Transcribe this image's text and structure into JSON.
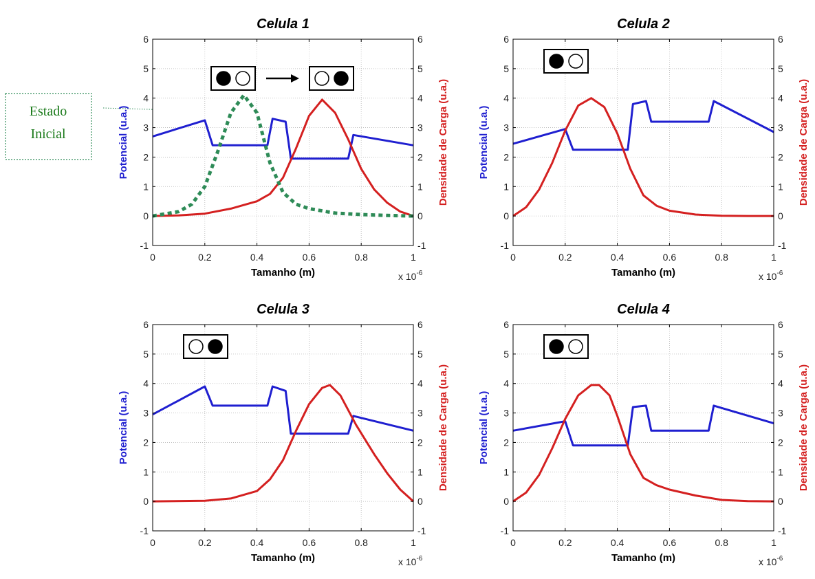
{
  "annotation": {
    "line1": "Estado",
    "line2": "Inicial",
    "color": "#1a7a1a"
  },
  "colors": {
    "potential": "#1f1fd0",
    "density": "#d42020",
    "initial": "#2e8b57"
  },
  "state_icons": {
    "cell1_from": [
      "filled",
      "empty"
    ],
    "cell1_to": [
      "empty",
      "filled"
    ],
    "cell2": [
      "filled",
      "empty"
    ],
    "cell3": [
      "empty",
      "filled"
    ],
    "cell4": [
      "filled",
      "empty"
    ]
  },
  "chart_data": [
    {
      "type": "line",
      "title": "Celula 1",
      "xlabel": "Tamanho (m)",
      "ylabel_left": "Potencial (u.a.)",
      "ylabel_right": "Densidade de Carga (u.a.)",
      "x_multiplier": "x 10-6",
      "xlim": [
        0,
        1
      ],
      "ylim": [
        -1,
        6
      ],
      "xticks": [
        "0",
        "0.2",
        "0.4",
        "0.6",
        "0.8",
        "1"
      ],
      "yticks": [
        "-1",
        "0",
        "1",
        "2",
        "3",
        "4",
        "5",
        "6"
      ],
      "grid": true,
      "series": [
        {
          "role": "potential",
          "axis": "left",
          "x": [
            0,
            0.2,
            0.23,
            0.44,
            0.46,
            0.51,
            0.53,
            0.75,
            0.77,
            1.0
          ],
          "y": [
            2.7,
            3.25,
            2.4,
            2.4,
            3.3,
            3.2,
            1.95,
            1.95,
            2.75,
            2.4
          ]
        },
        {
          "role": "density",
          "axis": "right",
          "x": [
            0,
            0.1,
            0.2,
            0.3,
            0.4,
            0.45,
            0.5,
            0.55,
            0.6,
            0.65,
            0.7,
            0.75,
            0.8,
            0.85,
            0.9,
            0.95,
            1.0
          ],
          "y": [
            0,
            0.02,
            0.08,
            0.25,
            0.5,
            0.75,
            1.3,
            2.3,
            3.4,
            3.95,
            3.5,
            2.6,
            1.6,
            0.9,
            0.45,
            0.15,
            0
          ]
        },
        {
          "role": "initial",
          "axis": "right",
          "dashed": true,
          "x": [
            0,
            0.1,
            0.15,
            0.2,
            0.25,
            0.3,
            0.35,
            0.4,
            0.45,
            0.5,
            0.55,
            0.6,
            0.7,
            0.8,
            0.9,
            1.0
          ],
          "y": [
            0,
            0.15,
            0.4,
            1.0,
            2.2,
            3.5,
            4.1,
            3.5,
            1.8,
            0.8,
            0.4,
            0.25,
            0.1,
            0.05,
            0.02,
            0
          ]
        }
      ]
    },
    {
      "type": "line",
      "title": "Celula 2",
      "xlabel": "Tamanho (m)",
      "ylabel_left": "Potencial (u.a.)",
      "ylabel_right": "Densidade de Carga (u.a.)",
      "x_multiplier": "x 10-6",
      "xlim": [
        0,
        1
      ],
      "ylim": [
        -1,
        6
      ],
      "xticks": [
        "0",
        "0.2",
        "0.4",
        "0.6",
        "0.8",
        "1"
      ],
      "yticks": [
        "-1",
        "0",
        "1",
        "2",
        "3",
        "4",
        "5",
        "6"
      ],
      "grid": true,
      "series": [
        {
          "role": "potential",
          "axis": "left",
          "x": [
            0,
            0.2,
            0.23,
            0.44,
            0.46,
            0.51,
            0.53,
            0.75,
            0.77,
            1.0
          ],
          "y": [
            2.45,
            2.95,
            2.25,
            2.25,
            3.8,
            3.9,
            3.2,
            3.2,
            3.9,
            2.85
          ]
        },
        {
          "role": "density",
          "axis": "right",
          "x": [
            0,
            0.05,
            0.1,
            0.15,
            0.2,
            0.25,
            0.3,
            0.35,
            0.4,
            0.45,
            0.5,
            0.55,
            0.6,
            0.7,
            0.8,
            0.9,
            1.0
          ],
          "y": [
            0,
            0.3,
            0.9,
            1.8,
            2.9,
            3.75,
            4.0,
            3.7,
            2.8,
            1.6,
            0.7,
            0.35,
            0.18,
            0.05,
            0.01,
            0,
            0
          ]
        }
      ]
    },
    {
      "type": "line",
      "title": "Celula 3",
      "xlabel": "Tamanho (m)",
      "ylabel_left": "Potencial (u.a.)",
      "ylabel_right": "Densidade de Carga (u.a.)",
      "x_multiplier": "x 10-6",
      "xlim": [
        0,
        1
      ],
      "ylim": [
        -1,
        6
      ],
      "xticks": [
        "0",
        "0.2",
        "0.4",
        "0.6",
        "0.8",
        "1"
      ],
      "yticks": [
        "-1",
        "0",
        "1",
        "2",
        "3",
        "4",
        "5",
        "6"
      ],
      "grid": true,
      "series": [
        {
          "role": "potential",
          "axis": "left",
          "x": [
            0,
            0.2,
            0.23,
            0.44,
            0.46,
            0.51,
            0.53,
            0.75,
            0.77,
            1.0
          ],
          "y": [
            2.95,
            3.9,
            3.25,
            3.25,
            3.9,
            3.75,
            2.3,
            2.3,
            2.9,
            2.4
          ]
        },
        {
          "role": "density",
          "axis": "right",
          "x": [
            0,
            0.2,
            0.3,
            0.4,
            0.45,
            0.5,
            0.55,
            0.6,
            0.65,
            0.68,
            0.72,
            0.78,
            0.85,
            0.9,
            0.95,
            1.0
          ],
          "y": [
            0,
            0.02,
            0.1,
            0.35,
            0.75,
            1.4,
            2.4,
            3.3,
            3.85,
            3.95,
            3.6,
            2.6,
            1.6,
            0.95,
            0.4,
            0
          ]
        }
      ]
    },
    {
      "type": "line",
      "title": "Celula 4",
      "xlabel": "Tamanho (m)",
      "ylabel_left": "Potencial (u.a.)",
      "ylabel_right": "Densidade de Carga (u.a.)",
      "x_multiplier": "x 10-6",
      "xlim": [
        0,
        1
      ],
      "ylim": [
        -1,
        6
      ],
      "xticks": [
        "0",
        "0.2",
        "0.4",
        "0.6",
        "0.8",
        "1"
      ],
      "yticks": [
        "-1",
        "0",
        "1",
        "2",
        "3",
        "4",
        "5",
        "6"
      ],
      "grid": true,
      "series": [
        {
          "role": "potential",
          "axis": "left",
          "x": [
            0,
            0.2,
            0.23,
            0.44,
            0.46,
            0.51,
            0.53,
            0.75,
            0.77,
            1.0
          ],
          "y": [
            2.4,
            2.72,
            1.9,
            1.9,
            3.2,
            3.25,
            2.4,
            2.4,
            3.25,
            2.65
          ]
        },
        {
          "role": "density",
          "axis": "right",
          "x": [
            0,
            0.05,
            0.1,
            0.15,
            0.2,
            0.25,
            0.3,
            0.33,
            0.37,
            0.4,
            0.45,
            0.5,
            0.55,
            0.6,
            0.7,
            0.8,
            0.9,
            1.0
          ],
          "y": [
            0,
            0.3,
            0.9,
            1.8,
            2.8,
            3.6,
            3.95,
            3.95,
            3.6,
            2.9,
            1.6,
            0.8,
            0.55,
            0.4,
            0.2,
            0.05,
            0.01,
            0
          ]
        }
      ]
    }
  ]
}
